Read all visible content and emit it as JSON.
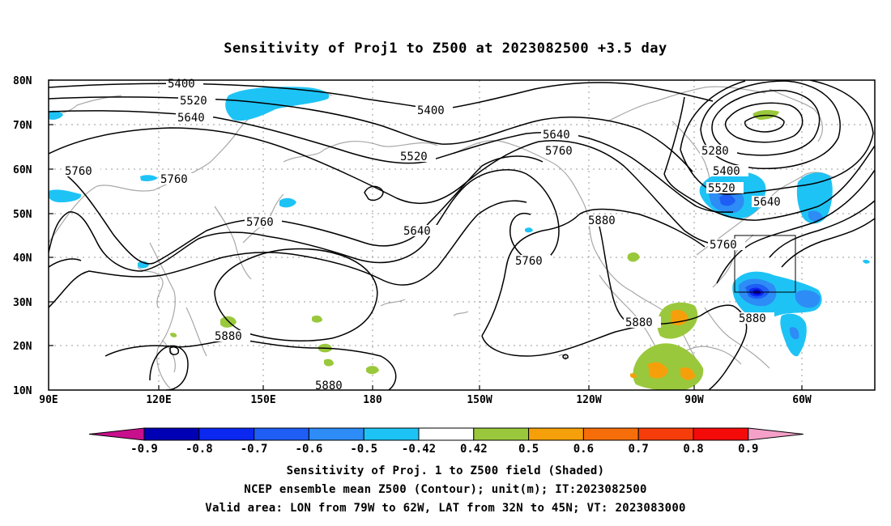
{
  "title": "Sensitivity of Proj1 to Z500 at 2023082500 +3.5 day",
  "map": {
    "lat_ticks": [
      "80N",
      "70N",
      "60N",
      "50N",
      "40N",
      "30N",
      "20N",
      "10N"
    ],
    "lon_ticks": [
      "90E",
      "120E",
      "150E",
      "180",
      "150W",
      "120W",
      "90W",
      "60W"
    ],
    "lon_range": [
      90,
      315
    ],
    "lat_range": [
      10,
      80
    ],
    "valid_box": {
      "lon": [
        281,
        298
      ],
      "lat": [
        32,
        45
      ]
    },
    "contour_labels": [
      "5400",
      "5520",
      "5640",
      "5760",
      "5880",
      "5400",
      "5520",
      "5640",
      "5760",
      "5400",
      "5520",
      "5640",
      "5760",
      "5880",
      "5280",
      "5400",
      "5520",
      "5640",
      "5760",
      "5880",
      "5880",
      "5760",
      "5880",
      "5760",
      "5880"
    ]
  },
  "colorbar": {
    "labels": [
      "-0.9",
      "-0.8",
      "-0.7",
      "-0.6",
      "-0.5",
      "-0.42",
      "0.42",
      "0.5",
      "0.6",
      "0.7",
      "0.8",
      "0.9"
    ],
    "colors": [
      "#0000b4",
      "#0a28f0",
      "#1e5ef5",
      "#2d8cf5",
      "#1ec3f5",
      "#ffffff",
      "#9ac83c",
      "#f5a00a",
      "#f56e0a",
      "#f53c0a",
      "#f50a0a"
    ],
    "left_tri_color": "#c8108c",
    "right_tri_color": "#f5a0c8"
  },
  "footer": {
    "line1": "Sensitivity of Proj. 1 to Z500 field (Shaded)",
    "line2": "NCEP ensemble mean Z500 (Contour); unit(m); IT:2023082500",
    "line3": "Valid area: LON from 79W to 62W, LAT from 32N to 45N; VT: 2023083000"
  }
}
